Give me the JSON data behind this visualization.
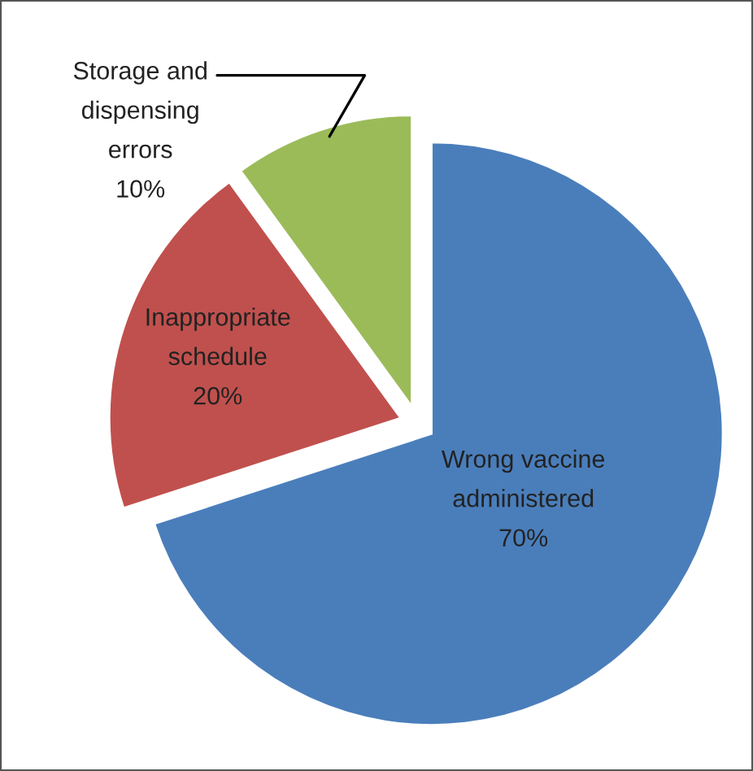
{
  "chart_data": {
    "type": "pie",
    "categories": [
      "Wrong vaccine administered",
      "Inappropriate schedule",
      "Storage and dispensing errors"
    ],
    "values": [
      70,
      20,
      10
    ],
    "colors": [
      "#4a7ebb",
      "#c0504d",
      "#9bbb59"
    ],
    "value_labels": [
      "70%",
      "20%",
      "10%"
    ],
    "legend": false
  }
}
